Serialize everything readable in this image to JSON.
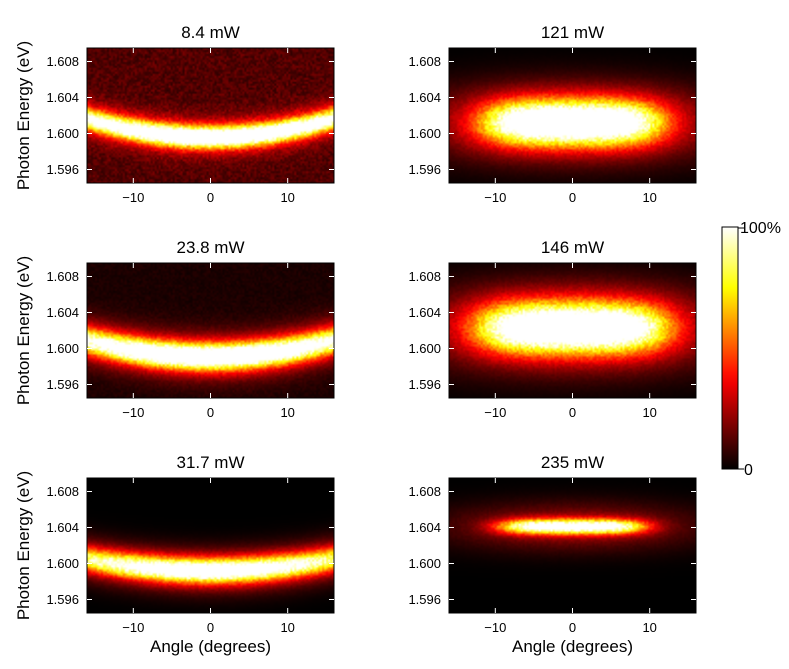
{
  "chart_data": [
    {
      "type": "heatmap",
      "title": "8.4 mW",
      "xlabel": "",
      "ylabel": "Photon Energy (eV)",
      "xlim": [
        -16,
        16
      ],
      "ylim": [
        1.5945,
        1.6095
      ],
      "xticks": [
        -10,
        0,
        10
      ],
      "xticklabels": [
        "−10",
        "0",
        "10"
      ],
      "yticks": [
        1.596,
        1.6,
        1.604,
        1.608
      ],
      "yticklabels": [
        "1.596",
        "1.600",
        "1.604",
        "1.608"
      ],
      "emission": {
        "type": "dispersion",
        "center_energy": 1.5996,
        "curvature": 0.0008,
        "energy_width": 0.0011,
        "angle_width": 12,
        "background": 0.12,
        "peak": 0.95
      }
    },
    {
      "type": "heatmap",
      "title": "121 mW",
      "xlabel": "",
      "ylabel": "",
      "xlim": [
        -16,
        16
      ],
      "ylim": [
        1.5945,
        1.6095
      ],
      "xticks": [
        -10,
        0,
        10
      ],
      "xticklabels": [
        "−10",
        "0",
        "10"
      ],
      "yticks": [
        1.596,
        1.6,
        1.604,
        1.608
      ],
      "yticklabels": [
        "1.596",
        "1.600",
        "1.604",
        "1.608"
      ],
      "emission": {
        "type": "blob",
        "center_energy": 1.6012,
        "curvature": 0,
        "energy_width": 0.0024,
        "angle_width": 8.5,
        "background": 0.0,
        "peak": 1.0
      }
    },
    {
      "type": "heatmap",
      "title": "23.8 mW",
      "xlabel": "",
      "ylabel": "Photon Energy (eV)",
      "xlim": [
        -16,
        16
      ],
      "ylim": [
        1.5945,
        1.6095
      ],
      "xticks": [
        -10,
        0,
        10
      ],
      "xticklabels": [
        "−10",
        "0",
        "10"
      ],
      "yticks": [
        1.596,
        1.6,
        1.604,
        1.608
      ],
      "yticklabels": [
        "1.596",
        "1.600",
        "1.604",
        "1.608"
      ],
      "emission": {
        "type": "dispersion",
        "center_energy": 1.5991,
        "curvature": 0.0007,
        "energy_width": 0.0014,
        "angle_width": 11,
        "background": 0.04,
        "peak": 1.0
      }
    },
    {
      "type": "heatmap",
      "title": "146 mW",
      "xlabel": "",
      "ylabel": "",
      "xlim": [
        -16,
        16
      ],
      "ylim": [
        1.5945,
        1.6095
      ],
      "xticks": [
        -10,
        0,
        10
      ],
      "xticklabels": [
        "−10",
        "0",
        "10"
      ],
      "yticks": [
        1.596,
        1.6,
        1.604,
        1.608
      ],
      "yticklabels": [
        "1.596",
        "1.600",
        "1.604",
        "1.608"
      ],
      "emission": {
        "type": "blob",
        "center_energy": 1.6023,
        "curvature": 0,
        "energy_width": 0.0027,
        "angle_width": 9,
        "background": 0.0,
        "peak": 1.0
      }
    },
    {
      "type": "heatmap",
      "title": "31.7 mW",
      "xlabel": "Angle (degrees)",
      "ylabel": "Photon Energy (eV)",
      "xlim": [
        -16,
        16
      ],
      "ylim": [
        1.5945,
        1.6095
      ],
      "xticks": [
        -10,
        0,
        10
      ],
      "xticklabels": [
        "−10",
        "0",
        "10"
      ],
      "yticks": [
        1.596,
        1.6,
        1.604,
        1.608
      ],
      "yticklabels": [
        "1.596",
        "1.600",
        "1.604",
        "1.608"
      ],
      "emission": {
        "type": "dispersion",
        "center_energy": 1.5992,
        "curvature": 0.0005,
        "energy_width": 0.0013,
        "angle_width": 10,
        "background": 0.0,
        "peak": 0.95
      }
    },
    {
      "type": "heatmap",
      "title": "235 mW",
      "xlabel": "Angle (degrees)",
      "ylabel": "",
      "xlim": [
        -16,
        16
      ],
      "ylim": [
        1.5945,
        1.6095
      ],
      "xticks": [
        -10,
        0,
        10
      ],
      "xticklabels": [
        "−10",
        "0",
        "10"
      ],
      "yticks": [
        1.596,
        1.6,
        1.604,
        1.608
      ],
      "yticklabels": [
        "1.596",
        "1.600",
        "1.604",
        "1.608"
      ],
      "emission": {
        "type": "line",
        "center_energy": 1.6041,
        "curvature": 0,
        "energy_width": 0.0008,
        "angle_width": 8,
        "background": 0.0,
        "peak": 1.0
      }
    }
  ],
  "colorbar": {
    "colormap": "hot",
    "max_label": "100%",
    "min_label": "0",
    "max_value": 100,
    "min_value": 0
  }
}
